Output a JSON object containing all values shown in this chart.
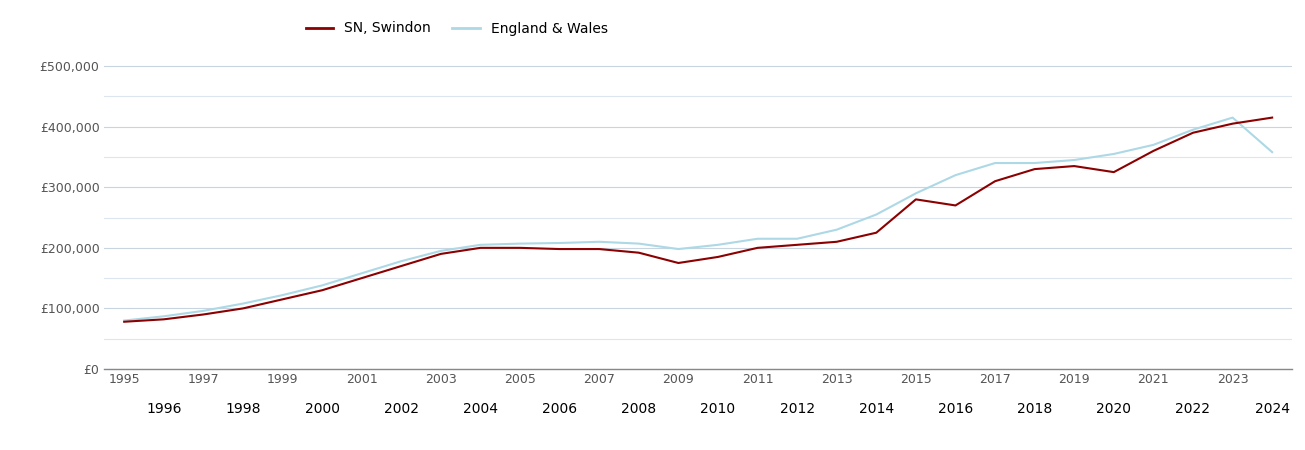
{
  "swindon_years": [
    1995,
    1996,
    1997,
    1998,
    1999,
    2000,
    2001,
    2002,
    2003,
    2004,
    2005,
    2006,
    2007,
    2008,
    2009,
    2010,
    2011,
    2012,
    2013,
    2014,
    2015,
    2016,
    2017,
    2018,
    2019,
    2020,
    2021,
    2022,
    2023,
    2024
  ],
  "swindon_values": [
    78000,
    82000,
    90000,
    100000,
    115000,
    130000,
    150000,
    170000,
    190000,
    200000,
    200000,
    198000,
    198000,
    192000,
    175000,
    185000,
    200000,
    205000,
    210000,
    225000,
    280000,
    270000,
    310000,
    330000,
    335000,
    325000,
    360000,
    390000,
    405000,
    415000
  ],
  "ew_years": [
    1995,
    1996,
    1997,
    1998,
    1999,
    2000,
    2001,
    2002,
    2003,
    2004,
    2005,
    2006,
    2007,
    2008,
    2009,
    2010,
    2011,
    2012,
    2013,
    2014,
    2015,
    2016,
    2017,
    2018,
    2019,
    2020,
    2021,
    2022,
    2023,
    2024
  ],
  "ew_values": [
    80000,
    87000,
    96000,
    108000,
    122000,
    138000,
    158000,
    178000,
    195000,
    205000,
    207000,
    208000,
    210000,
    207000,
    198000,
    205000,
    215000,
    215000,
    230000,
    255000,
    290000,
    320000,
    340000,
    340000,
    345000,
    355000,
    370000,
    395000,
    415000,
    358000
  ],
  "swindon_color": "#8B0000",
  "ew_color": "#ADD8E6",
  "swindon_label": "SN, Swindon",
  "ew_label": "England & Wales",
  "ylim": [
    0,
    520000
  ],
  "yticks": [
    0,
    100000,
    200000,
    300000,
    400000,
    500000
  ],
  "ytick_labels": [
    "£0",
    "£100,000",
    "£200,000",
    "£300,000",
    "£400,000",
    "£500,000"
  ],
  "minor_yticks": [
    50000,
    150000,
    250000,
    350000,
    450000
  ],
  "odd_xticks": [
    1995,
    1997,
    1999,
    2001,
    2003,
    2005,
    2007,
    2009,
    2011,
    2013,
    2015,
    2017,
    2019,
    2021,
    2023
  ],
  "even_xticks": [
    1996,
    1998,
    2000,
    2002,
    2004,
    2006,
    2008,
    2010,
    2012,
    2014,
    2016,
    2018,
    2020,
    2022,
    2024
  ],
  "background_color": "#ffffff",
  "major_grid_color": "#c8d4e0",
  "minor_grid_color": "#dde6ef",
  "line_width": 1.5,
  "tick_label_color": "#555555",
  "tick_fontsize": 9
}
